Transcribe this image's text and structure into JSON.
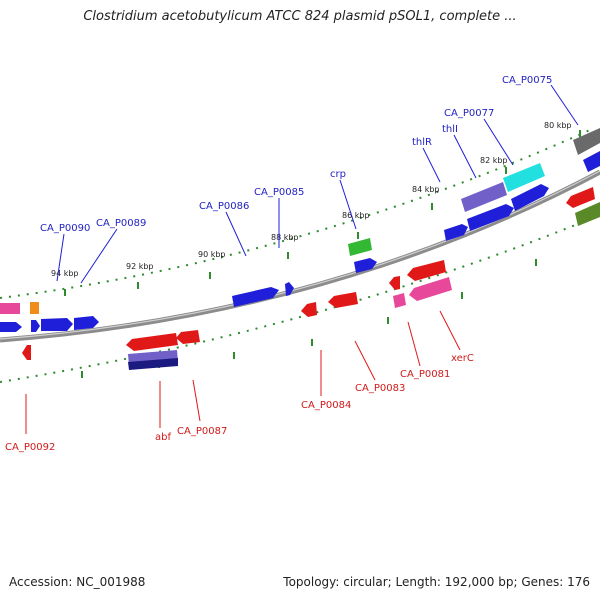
{
  "title": "Clostridium acetobutylicum ATCC 824 plasmid pSOL1, complete ...",
  "accession": "Accession: NC_001988",
  "summary": "Topology: circular; Length: 192,000 bp; Genes: 176",
  "colors": {
    "forward_gene": "#1f1fd9",
    "reverse_gene": "#e01818",
    "forward_label": "#1f1fc2",
    "reverse_label": "#d11a1a",
    "backbone": "#8c8c8c",
    "tick": "#2e8b2e"
  },
  "kbp_labels": [
    "80 kbp",
    "82 kbp",
    "84 kbp",
    "86 kbp",
    "88 kbp",
    "90 kbp",
    "92 kbp",
    "94 kbp"
  ],
  "forward_labels": [
    "CA_P0075",
    "CA_P0077",
    "thlR",
    "thlI",
    "crp",
    "CA_P0085",
    "CA_P0086",
    "CA_P0089",
    "CA_P0090"
  ],
  "reverse_labels": [
    "xerC",
    "CA_P0081",
    "CA_P0083",
    "CA_P0084",
    "CA_P0087",
    "abf",
    "CA_P0092"
  ]
}
